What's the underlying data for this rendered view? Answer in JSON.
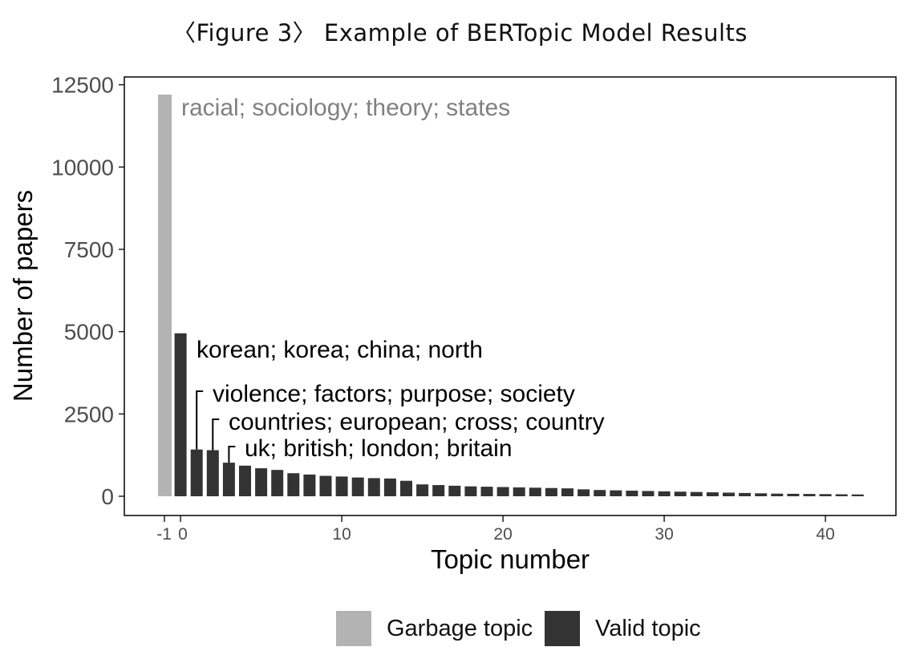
{
  "figure_title": "〈Figure 3〉 Example of BERTopic Model Results",
  "colors": {
    "garbage": "#b3b3b3",
    "valid": "#333333",
    "axis": "#111111",
    "tick_label": "#4d4d4d"
  },
  "legend": {
    "garbage_label": "Garbage topic",
    "valid_label": "Valid topic"
  },
  "chart_data": {
    "type": "bar",
    "xlabel": "Topic number",
    "ylabel": "Number of papers",
    "xlim": [
      -2,
      43
    ],
    "ylim": [
      0,
      12800
    ],
    "x_ticks": [
      -1,
      0,
      10,
      20,
      30,
      40
    ],
    "x_tick_labels": [
      "-1",
      "0",
      "10",
      "20",
      "30",
      "40"
    ],
    "y_ticks": [
      0,
      2500,
      5000,
      7500,
      10000,
      12500
    ],
    "y_tick_labels": [
      "0",
      "2500",
      "5000",
      "7500",
      "10000",
      "12500"
    ],
    "grid": false,
    "legend_position": "bottom",
    "series": [
      {
        "name": "Garbage topic",
        "x": [
          -1
        ],
        "values": [
          12200
        ]
      },
      {
        "name": "Valid topic",
        "x": [
          0,
          1,
          2,
          3,
          4,
          5,
          6,
          7,
          8,
          9,
          10,
          11,
          12,
          13,
          14,
          15,
          16,
          17,
          18,
          19,
          20,
          21,
          22,
          23,
          24,
          25,
          26,
          27,
          28,
          29,
          30,
          31,
          32,
          33,
          34,
          35,
          36,
          37,
          38,
          39,
          40,
          41,
          42
        ],
        "values": [
          4950,
          1420,
          1400,
          1020,
          930,
          850,
          800,
          700,
          660,
          620,
          600,
          570,
          550,
          540,
          470,
          360,
          340,
          320,
          300,
          290,
          280,
          270,
          260,
          250,
          240,
          210,
          190,
          180,
          170,
          160,
          150,
          140,
          130,
          120,
          110,
          100,
          90,
          80,
          75,
          70,
          65,
          60,
          55
        ]
      }
    ],
    "annotations": [
      {
        "text": "racial; sociology; theory; states",
        "topic": -1,
        "series": "Garbage topic"
      },
      {
        "text": "korean; korea; china; north",
        "topic": 0,
        "series": "Valid topic"
      },
      {
        "text": "violence; factors; purpose; society",
        "topic": 1,
        "series": "Valid topic"
      },
      {
        "text": "countries; european; cross; country",
        "topic": 2,
        "series": "Valid topic"
      },
      {
        "text": "uk; british; london; britain",
        "topic": 3,
        "series": "Valid topic"
      }
    ]
  }
}
